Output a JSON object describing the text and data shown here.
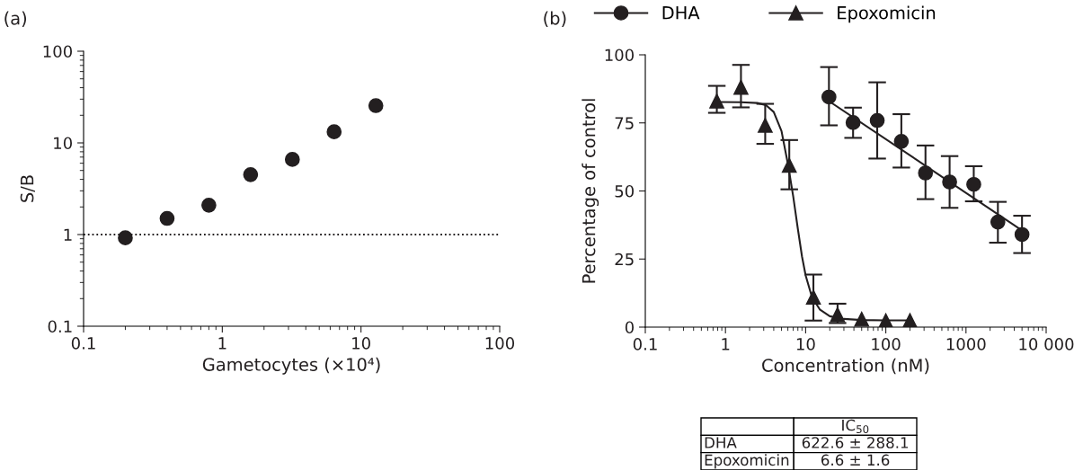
{
  "chart_data": [
    {
      "type": "scatter",
      "title": "(a)",
      "xlabel": "Gametocytes (×10⁴)",
      "ylabel": "S/B",
      "log": "xy",
      "xlim": [
        0.1,
        100
      ],
      "xticks": [
        0.1,
        1,
        10,
        100
      ],
      "ylim": [
        0.1,
        100
      ],
      "yticks": [
        0.1,
        1,
        10,
        100
      ],
      "marker": "circle",
      "series": [
        {
          "color": "#231f20",
          "x": [
            0.2,
            0.4,
            0.8,
            1.6,
            3.2,
            6.4,
            12.8
          ],
          "values": [
            0.92,
            1.5,
            2.09,
            4.5,
            6.6,
            13.2,
            25.5
          ]
        }
      ],
      "ref_lines": [
        {
          "axis": "y",
          "value": 1,
          "line_style": "dotted",
          "color": "#231f20"
        }
      ]
    },
    {
      "type": "scatter",
      "title": "(b)",
      "xlabel": "Concentration (nM)",
      "ylabel": "Percentage of control",
      "log": "x",
      "xlim": [
        0.1,
        10000
      ],
      "xticks": [
        0.1,
        1,
        10,
        100,
        1000,
        {
          "value": 10000,
          "label": "10 000"
        }
      ],
      "ylim": [
        0,
        100
      ],
      "yticks": [
        0,
        25,
        50,
        75,
        100
      ],
      "legend": "top",
      "series": [
        {
          "name": "DHA",
          "type": "scatter",
          "marker": "circle",
          "color": "#231f20",
          "x": [
            19.53,
            39.06,
            78.13,
            156.25,
            312.5,
            625,
            1250,
            2500,
            5000
          ],
          "values": [
            84.5,
            75.1,
            75.9,
            68.2,
            56.6,
            53.3,
            52.4,
            38.6,
            34.0
          ],
          "errors": [
            [
              74.1,
              95.5
            ],
            [
              69.5,
              80.6
            ],
            [
              61.9,
              89.9
            ],
            [
              58.6,
              78.2
            ],
            [
              47.0,
              66.7
            ],
            [
              43.8,
              62.8
            ],
            [
              46.2,
              59.1
            ],
            [
              31.0,
              46.0
            ],
            [
              27.2,
              40.9
            ]
          ]
        },
        {
          "name": "Epoxomicin",
          "type": "scatter",
          "marker": "triangle",
          "color": "#231f20",
          "x": [
            0.78,
            1.56,
            3.13,
            6.25,
            12.5,
            25,
            50,
            100,
            200
          ],
          "values": [
            83.0,
            88.1,
            74.1,
            59.4,
            11.0,
            4.6,
            2.9,
            2.3,
            2.4
          ],
          "errors": [
            [
              78.7,
              88.6
            ],
            [
              80.7,
              96.3
            ],
            [
              67.3,
              82.0
            ],
            [
              50.6,
              68.7
            ],
            [
              2.4,
              19.3
            ],
            [
              1.5,
              8.6
            ],
            null,
            null,
            null
          ]
        },
        {
          "type": "line",
          "marker": "none",
          "color": "#231f20",
          "x": [
            19.53,
            5000
          ],
          "values": [
            83.0,
            35.5
          ]
        },
        {
          "type": "line",
          "marker": "none",
          "color": "#231f20",
          "x": [
            0.78,
            1.56,
            2.5,
            3.2,
            4,
            5,
            6,
            7,
            8,
            9,
            10,
            12,
            15,
            20,
            30,
            50,
            100,
            200
          ],
          "values": [
            82.7,
            82.6,
            82.3,
            81.5,
            79,
            72,
            60,
            48,
            36,
            26,
            19,
            11,
            6.5,
            4,
            3,
            2.6,
            2.5,
            2.5
          ]
        }
      ],
      "annotations": [
        "IC$_{50}$",
        "DHA",
        "622.6 ± 288.1",
        "Epoxomicin",
        "6.6 ± 1.6"
      ]
    }
  ]
}
